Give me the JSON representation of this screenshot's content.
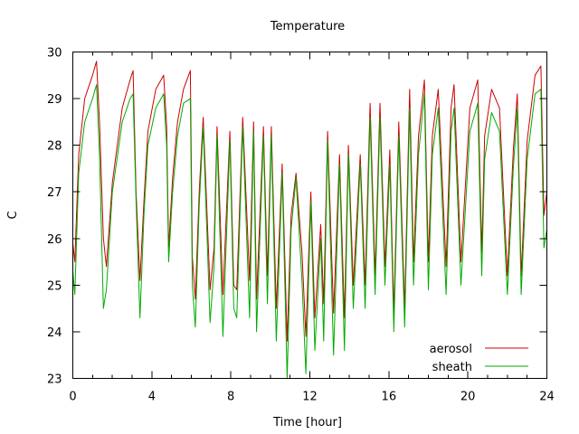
{
  "chart_data": {
    "type": "line",
    "title": "Temperature",
    "xlabel": "Time [hour]",
    "ylabel": "C",
    "xlim": [
      0,
      24
    ],
    "ylim": [
      23,
      30
    ],
    "xticks": [
      0,
      4,
      8,
      12,
      16,
      20,
      24
    ],
    "yticks": [
      23,
      24,
      25,
      26,
      27,
      28,
      29,
      30
    ],
    "grid": false,
    "legend_position": "bottom-right",
    "series": [
      {
        "name": "aerosol",
        "color": "#cc0000",
        "x": [
          0,
          0.1,
          0.3,
          0.6,
          1.0,
          1.2,
          1.35,
          1.55,
          1.7,
          2.0,
          2.5,
          2.9,
          3.05,
          3.2,
          3.4,
          3.6,
          3.8,
          4.2,
          4.6,
          4.75,
          4.85,
          5.05,
          5.3,
          5.6,
          5.95,
          6.05,
          6.2,
          6.4,
          6.6,
          6.95,
          7.15,
          7.3,
          7.6,
          7.95,
          8.15,
          8.3,
          8.6,
          8.95,
          9.15,
          9.3,
          9.65,
          9.85,
          10.05,
          10.3,
          10.6,
          10.85,
          11.05,
          11.3,
          11.6,
          11.8,
          12.05,
          12.25,
          12.55,
          12.7,
          12.9,
          13.2,
          13.5,
          13.75,
          13.95,
          14.2,
          14.55,
          14.8,
          15.05,
          15.3,
          15.55,
          15.8,
          16.05,
          16.25,
          16.5,
          16.8,
          17.05,
          17.25,
          17.5,
          17.8,
          18.0,
          18.2,
          18.5,
          18.9,
          19.15,
          19.3,
          19.65,
          20.1,
          20.5,
          20.7,
          20.85,
          21.2,
          21.6,
          22.0,
          22.3,
          22.5,
          22.7,
          23.0,
          23.4,
          23.7,
          23.85,
          24.0
        ],
        "y": [
          25.9,
          25.5,
          27.8,
          29.0,
          29.5,
          29.8,
          28.5,
          26.0,
          25.4,
          27.2,
          28.8,
          29.4,
          29.6,
          27.0,
          25.1,
          26.8,
          28.3,
          29.2,
          29.5,
          28.4,
          25.8,
          27.3,
          28.5,
          29.2,
          29.6,
          25.6,
          24.7,
          27.0,
          28.6,
          24.9,
          25.8,
          28.4,
          24.8,
          28.3,
          25.0,
          24.9,
          28.6,
          25.1,
          28.5,
          24.7,
          28.4,
          25.2,
          28.4,
          24.5,
          27.6,
          23.8,
          26.5,
          27.4,
          25.7,
          23.9,
          27.0,
          24.3,
          26.3,
          24.6,
          28.3,
          24.4,
          27.8,
          24.3,
          28.0,
          25.0,
          27.8,
          25.0,
          28.9,
          25.2,
          28.9,
          25.4,
          27.9,
          24.4,
          28.5,
          24.5,
          29.2,
          25.5,
          28.2,
          29.4,
          25.5,
          28.2,
          29.2,
          25.4,
          28.8,
          29.3,
          25.5,
          28.8,
          29.4,
          25.7,
          28.2,
          29.2,
          28.8,
          25.2,
          27.9,
          29.1,
          25.2,
          28.1,
          29.5,
          29.7,
          26.5,
          27.0
        ]
      },
      {
        "name": "sheath",
        "color": "#00aa00",
        "x": [
          0,
          0.1,
          0.3,
          0.6,
          1.0,
          1.2,
          1.35,
          1.55,
          1.7,
          2.0,
          2.5,
          2.9,
          3.05,
          3.2,
          3.4,
          3.6,
          3.8,
          4.2,
          4.6,
          4.75,
          4.85,
          5.05,
          5.3,
          5.6,
          5.95,
          6.05,
          6.2,
          6.4,
          6.6,
          6.95,
          7.15,
          7.3,
          7.6,
          7.95,
          8.15,
          8.3,
          8.6,
          8.95,
          9.15,
          9.3,
          9.65,
          9.85,
          10.05,
          10.3,
          10.6,
          10.85,
          11.05,
          11.3,
          11.6,
          11.8,
          12.05,
          12.25,
          12.55,
          12.7,
          12.9,
          13.2,
          13.5,
          13.75,
          13.95,
          14.2,
          14.55,
          14.8,
          15.05,
          15.3,
          15.55,
          15.8,
          16.05,
          16.25,
          16.5,
          16.8,
          17.05,
          17.25,
          17.5,
          17.8,
          18.0,
          18.2,
          18.5,
          18.9,
          19.15,
          19.3,
          19.65,
          20.1,
          20.5,
          20.7,
          20.85,
          21.2,
          21.6,
          22.0,
          22.3,
          22.5,
          22.7,
          23.0,
          23.4,
          23.7,
          23.85,
          24.0
        ],
        "y": [
          25.3,
          24.8,
          27.4,
          28.5,
          29.0,
          29.3,
          27.8,
          24.5,
          24.9,
          27.0,
          28.5,
          29.0,
          29.1,
          26.8,
          24.3,
          26.5,
          28.0,
          28.8,
          29.1,
          28.0,
          25.5,
          27.0,
          28.2,
          28.9,
          29.0,
          25.0,
          24.1,
          26.7,
          28.4,
          24.2,
          25.4,
          28.2,
          23.9,
          28.1,
          24.5,
          24.3,
          28.4,
          24.3,
          28.3,
          24.0,
          28.2,
          24.6,
          28.2,
          23.8,
          27.4,
          23.0,
          26.2,
          27.3,
          25.1,
          23.1,
          26.8,
          23.6,
          26.0,
          23.8,
          28.1,
          23.5,
          27.6,
          23.6,
          27.8,
          24.5,
          27.6,
          24.5,
          28.6,
          24.8,
          28.6,
          25.0,
          27.6,
          24.0,
          28.2,
          24.1,
          28.8,
          25.0,
          27.8,
          29.1,
          24.9,
          27.8,
          28.8,
          24.8,
          28.3,
          28.8,
          25.0,
          28.3,
          28.9,
          25.2,
          27.7,
          28.7,
          28.3,
          24.8,
          27.5,
          28.8,
          24.8,
          27.7,
          29.1,
          29.2,
          25.8,
          26.2
        ]
      }
    ]
  }
}
